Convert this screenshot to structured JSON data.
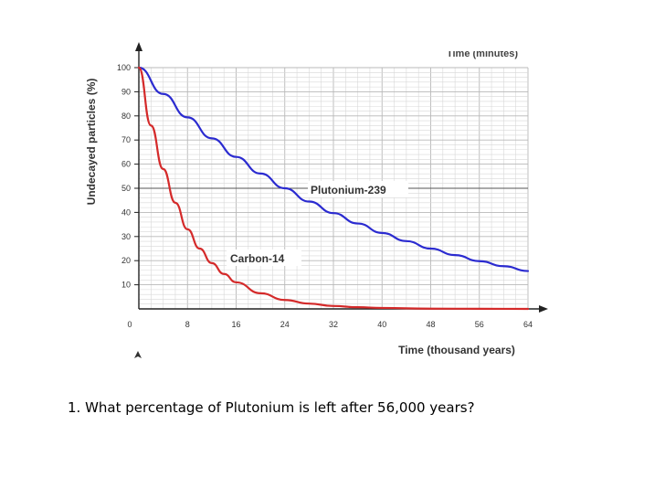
{
  "chart_data": {
    "type": "line",
    "xlabel": "Time (thousand years)",
    "ylabel": "Undecayed particles (%)",
    "clipped_title": "Time (minutes)",
    "xlim": [
      0,
      64
    ],
    "ylim": [
      0,
      100
    ],
    "x_ticks": [
      0,
      8,
      16,
      24,
      32,
      40,
      48,
      56,
      64
    ],
    "y_ticks": [
      10,
      20,
      30,
      40,
      50,
      60,
      70,
      80,
      90,
      100
    ],
    "grid": true,
    "series": [
      {
        "name": "Plutonium-239",
        "color": "#2b2bd0",
        "x": [
          0,
          4,
          8,
          12,
          16,
          20,
          24,
          28,
          32,
          36,
          40,
          44,
          48,
          52,
          56,
          60,
          64
        ],
        "y": [
          100,
          89.1,
          79.4,
          70.7,
          63.0,
          56.1,
          50.0,
          44.5,
          39.7,
          35.4,
          31.5,
          28.1,
          25.0,
          22.3,
          19.8,
          17.7,
          15.7
        ]
      },
      {
        "name": "Carbon-14",
        "color": "#d42a2a",
        "x": [
          0,
          2,
          4,
          6,
          8,
          10,
          12,
          14,
          16,
          20,
          24,
          28,
          32,
          36,
          40,
          48,
          56,
          64
        ],
        "y": [
          100,
          76,
          58,
          44,
          33,
          25,
          19,
          14.5,
          11,
          6.5,
          3.7,
          2.2,
          1.2,
          0.7,
          0.4,
          0.1,
          0.05,
          0
        ]
      }
    ]
  },
  "question": "1. What percentage of Plutonium is left after 56,000 years?"
}
